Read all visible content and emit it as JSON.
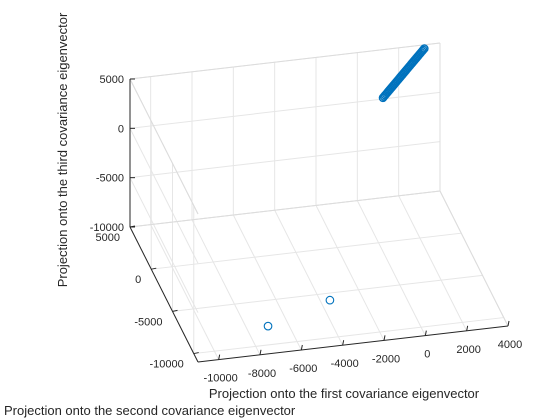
{
  "chart_data": {
    "type": "scatter3d",
    "title": "",
    "xlabel": "Projection onto the first covariance eigenvector",
    "ylabel": "Projection onto the second covariance eigenvector",
    "zlabel": "Projection onto the third covariance eigenvector",
    "xlim": [
      -11000,
      4000
    ],
    "ylim": [
      -11000,
      5000
    ],
    "zlim": [
      -10000,
      5000
    ],
    "xticks": [
      -10000,
      -8000,
      -6000,
      -4000,
      -2000,
      0,
      2000,
      4000
    ],
    "xtick_labels": [
      "-10000",
      "-8000",
      "-6000",
      "-4000",
      "-2000",
      "0",
      "2000",
      "4000"
    ],
    "yticks": [
      -10000,
      -5000,
      0,
      5000
    ],
    "ytick_labels": [
      "-10000",
      "-5000",
      "0",
      "5000"
    ],
    "zticks": [
      -10000,
      -5000,
      0,
      5000
    ],
    "ztick_labels": [
      "-10000",
      "-5000",
      "0",
      "5000"
    ],
    "grid": true,
    "marker_color": "#0072BD",
    "points": [
      {
        "x": -4000,
        "y": -8000,
        "z": -8000
      },
      {
        "x": -7200,
        "y": -9000,
        "z": -9000
      }
    ],
    "cluster": {
      "x_from": 1200,
      "x_to": 3200,
      "y": 4800,
      "z_from": 300,
      "z_to": 4800,
      "count": 40
    }
  }
}
